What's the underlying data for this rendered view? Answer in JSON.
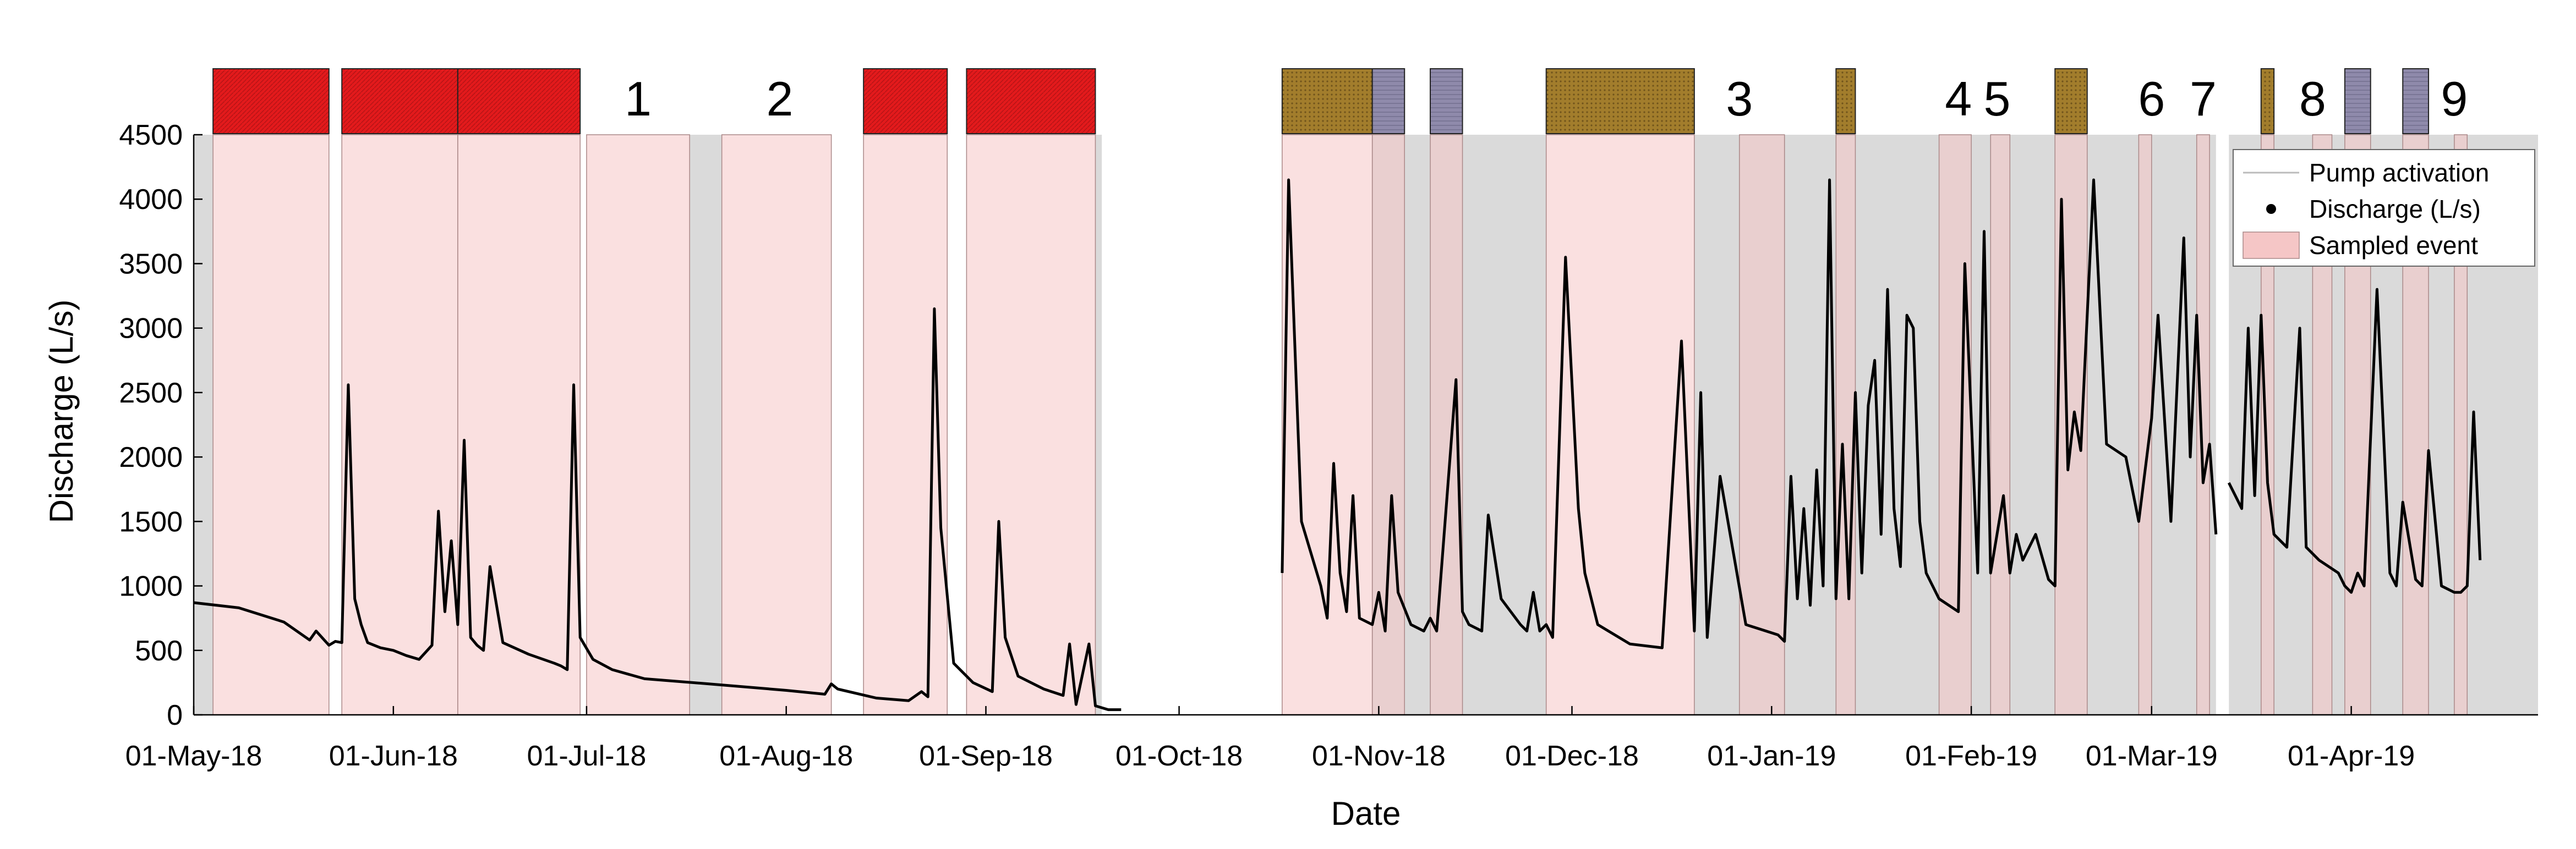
{
  "chart_data": {
    "type": "line",
    "title": "",
    "xlabel": "Date",
    "ylabel": "Discharge (L/s)",
    "ylim": [
      0,
      4500
    ],
    "xlim": [
      "2018-05-01",
      "2019-04-30"
    ],
    "grid": false,
    "legend_position": "top-right",
    "y_ticks": [
      0,
      500,
      1000,
      1500,
      2000,
      2500,
      3000,
      3500,
      4000,
      4500
    ],
    "y_tick_labels": [
      "0",
      "500",
      "1000",
      "1500",
      "2000",
      "2500",
      "3000",
      "3500",
      "4000",
      "4500"
    ],
    "x_ticks": [
      "2018-05-01",
      "2018-06-01",
      "2018-07-01",
      "2018-08-01",
      "2018-09-01",
      "2018-10-01",
      "2018-11-01",
      "2018-12-01",
      "2019-01-01",
      "2019-02-01",
      "2019-03-01",
      "2019-04-01"
    ],
    "x_tick_labels": [
      "01-May-18",
      "01-Jun-18",
      "01-Jul-18",
      "01-Aug-18",
      "01-Sep-18",
      "01-Oct-18",
      "01-Nov-18",
      "01-Dec-18",
      "01-Jan-19",
      "01-Feb-19",
      "01-Mar-19",
      "01-Apr-19"
    ],
    "legend": [
      {
        "key": "pump",
        "label": "Pump activation"
      },
      {
        "key": "discharge",
        "label": "Discharge (L/s)"
      },
      {
        "key": "sampled",
        "label": "Sampled event"
      }
    ],
    "colors": {
      "red_bar": "#e31a1c",
      "gold_bar": "#a27d2c",
      "purple_bar": "#8f8aab",
      "sampled_fill": "#f5c6c6",
      "pump_fill": "#d3d3d3",
      "discharge": "#000000"
    },
    "category_bars": [
      {
        "start": "2018-05-04",
        "end": "2018-05-22",
        "type": "red"
      },
      {
        "start": "2018-05-24",
        "end": "2018-06-11",
        "type": "red"
      },
      {
        "start": "2018-06-11",
        "end": "2018-06-30",
        "type": "red"
      },
      {
        "start": "2018-08-13",
        "end": "2018-08-26",
        "type": "red"
      },
      {
        "start": "2018-08-29",
        "end": "2018-09-18",
        "type": "red"
      },
      {
        "start": "2018-10-17",
        "end": "2018-10-31",
        "type": "gold"
      },
      {
        "start": "2018-10-31",
        "end": "2018-11-05",
        "type": "purple"
      },
      {
        "start": "2018-11-09",
        "end": "2018-11-14",
        "type": "purple"
      },
      {
        "start": "2018-11-27",
        "end": "2018-12-20",
        "type": "gold"
      },
      {
        "start": "2019-01-11",
        "end": "2019-01-14",
        "type": "gold"
      },
      {
        "start": "2019-02-14",
        "end": "2019-02-19",
        "type": "gold"
      },
      {
        "start": "2019-03-18",
        "end": "2019-03-20",
        "type": "gold"
      },
      {
        "start": "2019-03-31",
        "end": "2019-04-04",
        "type": "purple"
      },
      {
        "start": "2019-04-09",
        "end": "2019-04-13",
        "type": "purple"
      }
    ],
    "event_numbers": [
      {
        "label": "1",
        "date": "2018-07-09"
      },
      {
        "label": "2",
        "date": "2018-07-31"
      },
      {
        "label": "3",
        "date": "2018-12-27"
      },
      {
        "label": "4",
        "date": "2019-01-30"
      },
      {
        "label": "5",
        "date": "2019-02-05"
      },
      {
        "label": "6",
        "date": "2019-02-29"
      },
      {
        "label": "7",
        "date": "2019-03-09"
      },
      {
        "label": "8",
        "date": "2019-03-26"
      },
      {
        "label": "9",
        "date": "2019-04-17"
      }
    ],
    "sampled_events": [
      {
        "start": "2018-05-04",
        "end": "2018-05-22"
      },
      {
        "start": "2018-05-24",
        "end": "2018-06-11"
      },
      {
        "start": "2018-06-11",
        "end": "2018-06-30"
      },
      {
        "start": "2018-07-01",
        "end": "2018-07-17"
      },
      {
        "start": "2018-07-22",
        "end": "2018-08-08"
      },
      {
        "start": "2018-08-13",
        "end": "2018-08-26"
      },
      {
        "start": "2018-08-29",
        "end": "2018-09-18"
      },
      {
        "start": "2018-10-17",
        "end": "2018-10-31"
      },
      {
        "start": "2018-10-31",
        "end": "2018-11-05"
      },
      {
        "start": "2018-11-09",
        "end": "2018-11-14"
      },
      {
        "start": "2018-11-27",
        "end": "2018-12-20"
      },
      {
        "start": "2018-12-27",
        "end": "2019-01-03"
      },
      {
        "start": "2019-01-11",
        "end": "2019-01-14"
      },
      {
        "start": "2019-01-27",
        "end": "2019-02-01"
      },
      {
        "start": "2019-02-04",
        "end": "2019-02-07"
      },
      {
        "start": "2019-02-14",
        "end": "2019-02-19"
      },
      {
        "start": "2019-02-27",
        "end": "2019-03-01"
      },
      {
        "start": "2019-03-08",
        "end": "2019-03-10"
      },
      {
        "start": "2019-03-18",
        "end": "2019-03-20"
      },
      {
        "start": "2019-03-26",
        "end": "2019-03-29"
      },
      {
        "start": "2019-03-31",
        "end": "2019-04-04"
      },
      {
        "start": "2019-04-09",
        "end": "2019-04-13"
      },
      {
        "start": "2019-04-17",
        "end": "2019-04-19"
      }
    ],
    "pump_periods": [
      {
        "start": "2018-05-01",
        "end": "2018-05-04"
      },
      {
        "start": "2018-07-17",
        "end": "2018-07-22"
      },
      {
        "start": "2018-09-18",
        "end": "2018-09-19"
      },
      {
        "start": "2018-10-31",
        "end": "2018-11-27"
      },
      {
        "start": "2018-12-20",
        "end": "2019-03-11"
      },
      {
        "start": "2019-03-13",
        "end": "2019-04-30"
      }
    ],
    "series": [
      {
        "name": "Discharge (L/s)",
        "segments": [
          {
            "x": [
              "2018-05-01",
              "2018-05-08",
              "2018-05-15",
              "2018-05-19",
              "2018-05-20",
              "2018-05-22",
              "2018-05-23",
              "2018-05-24",
              "2018-05-25",
              "2018-05-26",
              "2018-05-27",
              "2018-05-28",
              "2018-05-30",
              "2018-06-01",
              "2018-06-03",
              "2018-06-05",
              "2018-06-07",
              "2018-06-08",
              "2018-06-09",
              "2018-06-10",
              "2018-06-11",
              "2018-06-12",
              "2018-06-13",
              "2018-06-14",
              "2018-06-15",
              "2018-06-16",
              "2018-06-18",
              "2018-06-22",
              "2018-06-26",
              "2018-06-27",
              "2018-06-28",
              "2018-06-29",
              "2018-06-30",
              "2018-07-02",
              "2018-07-05",
              "2018-07-10",
              "2018-07-20",
              "2018-08-01",
              "2018-08-07",
              "2018-08-08",
              "2018-08-09",
              "2018-08-15",
              "2018-08-20",
              "2018-08-22",
              "2018-08-23",
              "2018-08-24",
              "2018-08-25",
              "2018-08-27",
              "2018-08-30",
              "2018-09-02",
              "2018-09-03",
              "2018-09-04",
              "2018-09-06",
              "2018-09-10",
              "2018-09-13",
              "2018-09-14",
              "2018-09-15",
              "2018-09-17",
              "2018-09-18",
              "2018-09-20",
              "2018-09-22"
            ],
            "y": [
              870,
              830,
              720,
              580,
              650,
              540,
              570,
              560,
              2560,
              900,
              700,
              560,
              520,
              500,
              460,
              430,
              540,
              1580,
              800,
              1350,
              700,
              2130,
              600,
              540,
              500,
              1150,
              560,
              470,
              400,
              380,
              350,
              2560,
              600,
              430,
              350,
              280,
              240,
              190,
              160,
              240,
              200,
              130,
              110,
              180,
              140,
              3150,
              1450,
              400,
              250,
              180,
              1500,
              600,
              300,
              200,
              150,
              550,
              80,
              550,
              70,
              40,
              40
            ]
          },
          {
            "x": [
              "2018-10-17",
              "2018-10-18",
              "2018-10-20",
              "2018-10-23",
              "2018-10-24",
              "2018-10-25",
              "2018-10-26",
              "2018-10-27",
              "2018-10-28",
              "2018-10-29",
              "2018-10-31",
              "2018-11-01",
              "2018-11-02",
              "2018-11-03",
              "2018-11-04",
              "2018-11-06",
              "2018-11-08",
              "2018-11-09",
              "2018-11-10",
              "2018-11-13",
              "2018-11-14",
              "2018-11-15",
              "2018-11-17",
              "2018-11-18",
              "2018-11-20",
              "2018-11-23",
              "2018-11-24",
              "2018-11-25",
              "2018-11-26",
              "2018-11-27",
              "2018-11-28",
              "2018-11-30",
              "2018-12-02",
              "2018-12-03",
              "2018-12-05",
              "2018-12-10",
              "2018-12-15",
              "2018-12-18",
              "2018-12-20",
              "2018-12-21",
              "2018-12-22",
              "2018-12-24",
              "2018-12-28",
              "2019-01-02",
              "2019-01-03",
              "2019-01-04",
              "2019-01-05",
              "2019-01-06",
              "2019-01-07",
              "2019-01-08",
              "2019-01-09",
              "2019-01-10",
              "2019-01-11",
              "2019-01-12",
              "2019-01-13",
              "2019-01-14",
              "2019-01-15",
              "2019-01-16",
              "2019-01-17",
              "2019-01-18",
              "2019-01-19",
              "2019-01-20",
              "2019-01-21",
              "2019-01-22",
              "2019-01-23",
              "2019-01-24",
              "2019-01-25",
              "2019-01-27",
              "2019-01-30",
              "2019-01-31",
              "2019-02-02",
              "2019-02-03",
              "2019-02-04",
              "2019-02-06",
              "2019-02-07",
              "2019-02-08",
              "2019-02-09",
              "2019-02-11",
              "2019-02-13",
              "2019-02-14",
              "2019-02-15",
              "2019-02-16",
              "2019-02-17",
              "2019-02-18",
              "2019-02-19",
              "2019-02-20",
              "2019-02-22",
              "2019-02-25",
              "2019-02-27",
              "2019-03-01",
              "2019-03-02",
              "2019-03-04",
              "2019-03-06",
              "2019-03-07",
              "2019-03-08",
              "2019-03-09",
              "2019-03-10",
              "2019-03-11"
            ],
            "y": [
              1100,
              4150,
              1500,
              1000,
              750,
              1950,
              1100,
              800,
              1700,
              750,
              700,
              950,
              650,
              1700,
              950,
              700,
              650,
              750,
              650,
              2600,
              800,
              700,
              650,
              1550,
              900,
              700,
              650,
              950,
              650,
              700,
              600,
              3550,
              1600,
              1100,
              700,
              550,
              520,
              2900,
              650,
              2500,
              600,
              1850,
              700,
              620,
              570,
              1850,
              900,
              1600,
              850,
              1900,
              1000,
              4150,
              900,
              2100,
              900,
              2500,
              1100,
              2400,
              2750,
              1400,
              3300,
              1600,
              1150,
              3100,
              3000,
              1500,
              1100,
              900,
              800,
              3500,
              1100,
              3750,
              1100,
              1700,
              1100,
              1400,
              1200,
              1400,
              1050,
              1000,
              4000,
              1900,
              2350,
              2050,
              3100,
              4150,
              2100,
              2000,
              1500,
              2300,
              3100,
              1500,
              3700,
              2000,
              3100,
              1800,
              2100,
              1400
            ]
          },
          {
            "x": [
              "2019-03-13",
              "2019-03-14",
              "2019-03-15",
              "2019-03-16",
              "2019-03-17",
              "2019-03-18",
              "2019-03-19",
              "2019-03-20",
              "2019-03-22",
              "2019-03-24",
              "2019-03-25",
              "2019-03-27",
              "2019-03-30",
              "2019-03-31",
              "2019-04-01",
              "2019-04-02",
              "2019-04-03",
              "2019-04-05",
              "2019-04-07",
              "2019-04-08",
              "2019-04-09",
              "2019-04-11",
              "2019-04-12",
              "2019-04-13",
              "2019-04-15",
              "2019-04-17",
              "2019-04-18",
              "2019-04-19",
              "2019-04-20",
              "2019-04-21"
            ],
            "y": [
              1800,
              1700,
              1600,
              3000,
              1700,
              3100,
              1800,
              1400,
              1300,
              3000,
              1300,
              1200,
              1100,
              1000,
              950,
              1100,
              1000,
              3300,
              1100,
              1000,
              1650,
              1050,
              1000,
              2050,
              1000,
              950,
              950,
              1000,
              2350,
              1200
            ]
          }
        ]
      }
    ]
  }
}
